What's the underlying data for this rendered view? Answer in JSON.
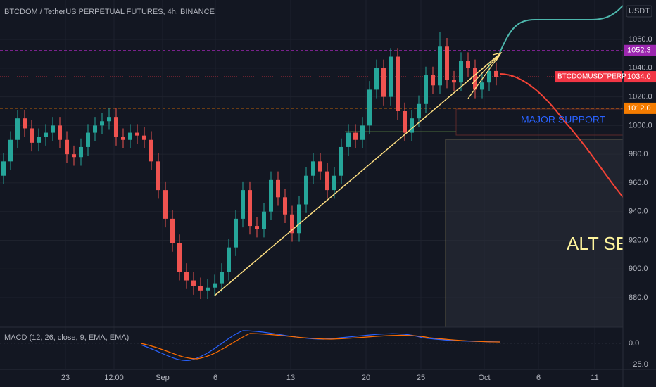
{
  "header": {
    "title": "BTCDOM / TetherUS PERPETUAL FUTURES, 4h, BINANCE"
  },
  "price_axis": {
    "unit": "USDT",
    "ylim": [
      859.4,
      1087.5
    ],
    "ticks": [
      {
        "value": 1060,
        "label": "1060.0"
      },
      {
        "value": 1040,
        "label": "1040.0"
      },
      {
        "value": 1020,
        "label": "1020.0"
      },
      {
        "value": 1000,
        "label": "1000.0"
      },
      {
        "value": 980,
        "label": "980.0"
      },
      {
        "value": 960,
        "label": "960.0"
      },
      {
        "value": 940,
        "label": "940.0"
      },
      {
        "value": 920,
        "label": "920.0"
      },
      {
        "value": 900,
        "label": "900.0"
      },
      {
        "value": 880,
        "label": "880.0"
      }
    ],
    "badges": [
      {
        "value": 1052.3,
        "label": "1052.3",
        "color": "#9c27b0"
      },
      {
        "value": 1034,
        "label": "1034.0",
        "color": "#f23645"
      },
      {
        "value": 1012,
        "label": "1012.0",
        "color": "#f57c00"
      }
    ],
    "symbol_label": "BTCDOMUSDTPERP"
  },
  "time_axis": {
    "labels": [
      "23",
      "12:00",
      "Sep",
      "6",
      "13",
      "20",
      "25",
      "Oct",
      "6",
      "11"
    ]
  },
  "annotations": {
    "support": "MAJOR SUPPORT",
    "alt": "ALT SEA"
  },
  "macd": {
    "label": "MACD (12, 26, close, 9, EMA, EMA)",
    "ticks": [
      "0.0",
      "−25.0"
    ]
  },
  "candles": [
    [
      965,
      981,
      959,
      975
    ],
    [
      975,
      996,
      969,
      990
    ],
    [
      990,
      1011,
      984,
      1005
    ],
    [
      1005,
      1011,
      992,
      998
    ],
    [
      998,
      1004,
      982,
      988
    ],
    [
      988,
      998,
      982,
      992
    ],
    [
      992,
      1001,
      986,
      995
    ],
    [
      995,
      1006,
      989,
      1000
    ],
    [
      1000,
      1006,
      984,
      990
    ],
    [
      990,
      996,
      974,
      980
    ],
    [
      980,
      986,
      972,
      978
    ],
    [
      978,
      991,
      972,
      985
    ],
    [
      985,
      1001,
      979,
      995
    ],
    [
      995,
      1006,
      989,
      1000
    ],
    [
      1000,
      1009,
      994,
      1003
    ],
    [
      1003,
      1012,
      997,
      1006
    ],
    [
      1006,
      1012,
      986,
      992
    ],
    [
      992,
      998,
      984,
      990
    ],
    [
      990,
      1001,
      984,
      995
    ],
    [
      995,
      1001,
      987,
      993
    ],
    [
      993,
      999,
      984,
      990
    ],
    [
      990,
      996,
      969,
      975
    ],
    [
      975,
      981,
      949,
      955
    ],
    [
      955,
      961,
      929,
      935
    ],
    [
      935,
      941,
      912,
      918
    ],
    [
      918,
      924,
      892,
      898
    ],
    [
      898,
      904,
      886,
      892
    ],
    [
      892,
      898,
      882,
      888
    ],
    [
      888,
      894,
      879,
      885
    ],
    [
      885,
      893,
      879,
      887
    ],
    [
      887,
      896,
      881,
      890
    ],
    [
      890,
      904,
      884,
      898
    ],
    [
      898,
      921,
      892,
      915
    ],
    [
      915,
      941,
      909,
      935
    ],
    [
      935,
      961,
      929,
      955
    ],
    [
      955,
      961,
      924,
      930
    ],
    [
      930,
      936,
      922,
      928
    ],
    [
      928,
      946,
      922,
      940
    ],
    [
      940,
      968,
      934,
      962
    ],
    [
      962,
      968,
      944,
      950
    ],
    [
      950,
      956,
      932,
      938
    ],
    [
      938,
      944,
      919,
      925
    ],
    [
      925,
      951,
      919,
      945
    ],
    [
      945,
      971,
      939,
      965
    ],
    [
      965,
      981,
      959,
      975
    ],
    [
      975,
      981,
      962,
      968
    ],
    [
      968,
      974,
      949,
      955
    ],
    [
      955,
      971,
      949,
      965
    ],
    [
      965,
      991,
      959,
      985
    ],
    [
      985,
      1001,
      979,
      995
    ],
    [
      995,
      1001,
      984,
      990
    ],
    [
      990,
      1006,
      984,
      1000
    ],
    [
      1000,
      1031,
      994,
      1025
    ],
    [
      1025,
      1046,
      1019,
      1040
    ],
    [
      1040,
      1046,
      1014,
      1020
    ],
    [
      1020,
      1054,
      1014,
      1048
    ],
    [
      1048,
      1054,
      1004,
      1010
    ],
    [
      1010,
      1016,
      989,
      995
    ],
    [
      995,
      1011,
      989,
      1005
    ],
    [
      1005,
      1021,
      999,
      1015
    ],
    [
      1015,
      1041,
      1009,
      1035
    ],
    [
      1035,
      1041,
      1022,
      1028
    ],
    [
      1028,
      1065,
      1022,
      1055
    ],
    [
      1055,
      1061,
      1026,
      1032
    ],
    [
      1032,
      1038,
      1024,
      1030
    ],
    [
      1030,
      1051,
      1024,
      1045
    ],
    [
      1045,
      1051,
      1034,
      1040
    ],
    [
      1040,
      1046,
      1019,
      1025
    ],
    [
      1025,
      1036,
      1019,
      1030
    ],
    [
      1030,
      1044,
      1024,
      1038
    ],
    [
      1038,
      1044,
      1028,
      1034
    ]
  ]
}
